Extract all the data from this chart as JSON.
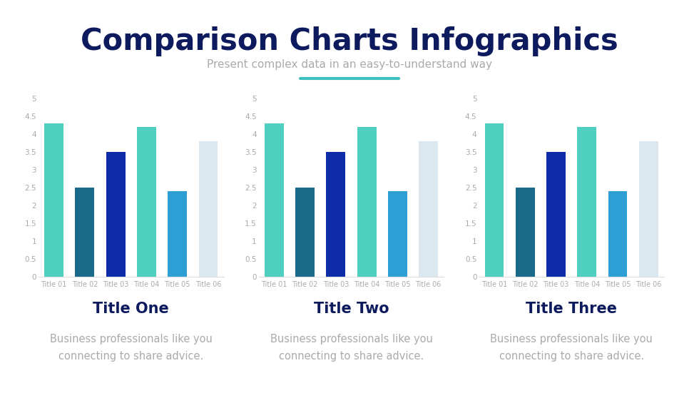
{
  "title": "Comparison Charts Infographics",
  "subtitle": "Present complex data in an easy-to-understand way",
  "title_color": "#0d1b5e",
  "subtitle_color": "#aaaaaa",
  "accent_color": "#3dbfbf",
  "background_color": "#ffffff",
  "charts": [
    {
      "title": "Title One",
      "desc": "Business professionals like you\nconnecting to share advice.",
      "categories": [
        "Title 01",
        "Title 02",
        "Title 03",
        "Title 04",
        "Title 05",
        "Title 06"
      ],
      "values": [
        4.3,
        2.5,
        3.5,
        4.2,
        2.4,
        3.8
      ],
      "colors": [
        "#4ecfbf",
        "#1a6b8a",
        "#0f2ca8",
        "#4ecfbf",
        "#2e9fd4",
        "#dce8f0"
      ]
    },
    {
      "title": "Title Two",
      "desc": "Business professionals like you\nconnecting to share advice.",
      "categories": [
        "Title 01",
        "Title 02",
        "Title 03",
        "Title 04",
        "Title 05",
        "Title 06"
      ],
      "values": [
        4.3,
        2.5,
        3.5,
        4.2,
        2.4,
        3.8
      ],
      "colors": [
        "#4ecfbf",
        "#1a6b8a",
        "#0f2ca8",
        "#4ecfbf",
        "#2e9fd4",
        "#dce8f0"
      ]
    },
    {
      "title": "Title Three",
      "desc": "Business professionals like you\nconnecting to share advice.",
      "categories": [
        "Title 01",
        "Title 02",
        "Title 03",
        "Title 04",
        "Title 05",
        "Title 06"
      ],
      "values": [
        4.3,
        2.5,
        3.5,
        4.2,
        2.4,
        3.8
      ],
      "colors": [
        "#4ecfbf",
        "#1a6b8a",
        "#0f2ca8",
        "#4ecfbf",
        "#2e9fd4",
        "#dce8f0"
      ]
    }
  ],
  "ylim": [
    0,
    5
  ],
  "yticks": [
    0,
    0.5,
    1,
    1.5,
    2,
    2.5,
    3,
    3.5,
    4,
    4.5,
    5
  ],
  "tick_color": "#aaaaaa",
  "tick_fontsize": 7.5,
  "xlabel_fontsize": 7,
  "chart_title_fontsize": 15,
  "chart_desc_fontsize": 10.5,
  "chart_title_color": "#0d1b5e",
  "chart_desc_color": "#aaaaaa",
  "title_fontsize": 30,
  "subtitle_fontsize": 11
}
